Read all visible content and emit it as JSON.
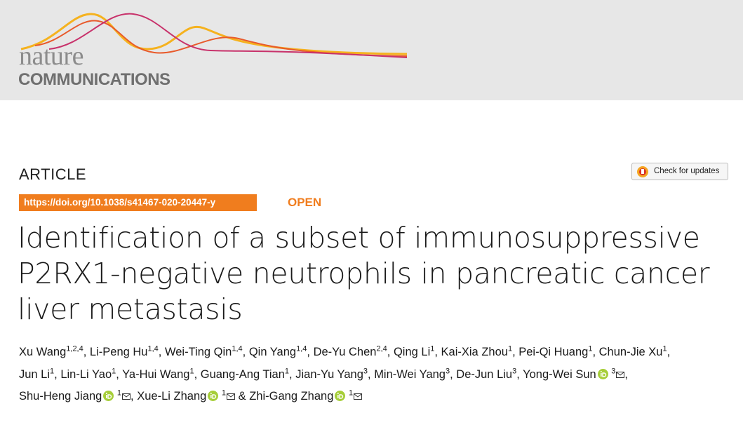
{
  "header": {
    "logo_line1": "nature",
    "logo_line2": "COMMUNICATIONS"
  },
  "article_type": "ARTICLE",
  "check_updates": "Check for updates",
  "doi": "https://doi.org/10.1038/s41467-020-20447-y",
  "access": "OPEN",
  "title": {
    "lines": [
      "Identification of a subset of immunosuppressive",
      "P2RX1-negative neutrophils in pancreatic cancer",
      "liver metastasis"
    ]
  },
  "authors": [
    {
      "name": "Xu Wang",
      "affiliations": "1,2,4",
      "separator": ","
    },
    {
      "name": "Li-Peng Hu",
      "affiliations": "1,4",
      "separator": ","
    },
    {
      "name": "Wei-Ting Qin",
      "affiliations": "1,4",
      "separator": ","
    },
    {
      "name": "Qin Yang",
      "affiliations": "1,4",
      "separator": ","
    },
    {
      "name": "De-Yu Chen",
      "affiliations": "2,4",
      "separator": ","
    },
    {
      "name": "Qing Li",
      "affiliations": "1",
      "separator": ","
    },
    {
      "name": "Kai-Xia Zhou",
      "affiliations": "1",
      "separator": ","
    },
    {
      "name": "Pei-Qi Huang",
      "affiliations": "1",
      "separator": ","
    },
    {
      "name": "Chun-Jie Xu",
      "affiliations": "1",
      "separator": ","
    },
    {
      "name": "Jun Li",
      "affiliations": "1",
      "separator": ","
    },
    {
      "name": "Lin-Li Yao",
      "affiliations": "1",
      "separator": ","
    },
    {
      "name": "Ya-Hui Wang",
      "affiliations": "1",
      "separator": ","
    },
    {
      "name": "Guang-Ang Tian",
      "affiliations": "1",
      "separator": ","
    },
    {
      "name": "Jian-Yu Yang",
      "affiliations": "3",
      "separator": ","
    },
    {
      "name": "Min-Wei Yang",
      "affiliations": "3",
      "separator": ","
    },
    {
      "name": "De-Jun Liu",
      "affiliations": "3",
      "separator": ","
    },
    {
      "name": "Yong-Wei Sun",
      "affiliations": "3",
      "orcid": true,
      "corresponding": true,
      "separator": ","
    },
    {
      "name": "Shu-Heng Jiang",
      "affiliations": "1",
      "orcid": true,
      "corresponding": true,
      "separator": ","
    },
    {
      "name": "Xue-Li Zhang",
      "affiliations": "1",
      "orcid": true,
      "corresponding": true,
      "separator": "&"
    },
    {
      "name": "Zhi-Gang Zhang",
      "affiliations": "1",
      "orcid": true,
      "corresponding": true
    }
  ]
}
